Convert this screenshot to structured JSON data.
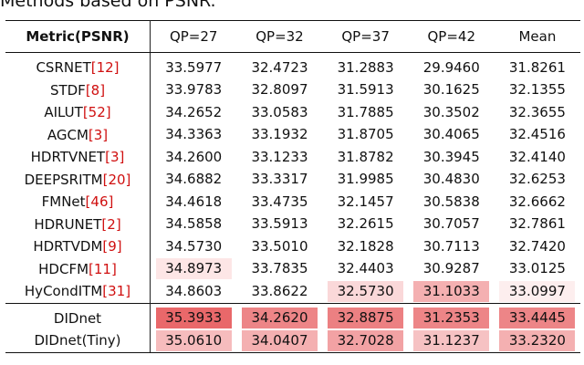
{
  "caption": "Methods based on PSNR.",
  "table": {
    "header": [
      "Metric(PSNR)",
      "QP=27",
      "QP=32",
      "QP=37",
      "QP=42",
      "Mean"
    ],
    "groups": [
      [
        {
          "method": "CSRNET",
          "cite": "[12]",
          "values": [
            "33.5977",
            "32.4723",
            "31.2883",
            "29.9460",
            "31.8261"
          ],
          "shade": [
            null,
            null,
            null,
            null,
            null
          ]
        },
        {
          "method": "STDF",
          "cite": "[8]",
          "values": [
            "33.9783",
            "32.8097",
            "31.5913",
            "30.1625",
            "32.1355"
          ],
          "shade": [
            null,
            null,
            null,
            null,
            null
          ]
        },
        {
          "method": "AILUT",
          "cite": "[52]",
          "values": [
            "34.2652",
            "33.0583",
            "31.7885",
            "30.3502",
            "32.3655"
          ],
          "shade": [
            null,
            null,
            null,
            null,
            null
          ]
        },
        {
          "method": "AGCM",
          "cite": "[3]",
          "values": [
            "34.3363",
            "33.1932",
            "31.8705",
            "30.4065",
            "32.4516"
          ],
          "shade": [
            null,
            null,
            null,
            null,
            null
          ]
        },
        {
          "method": "HDRTVNET",
          "cite": "[3]",
          "values": [
            "34.2600",
            "33.1233",
            "31.8782",
            "30.3945",
            "32.4140"
          ],
          "shade": [
            null,
            null,
            null,
            null,
            null
          ]
        },
        {
          "method": "DEEPSRITM",
          "cite": "[20]",
          "values": [
            "34.6882",
            "33.3317",
            "31.9985",
            "30.4830",
            "32.6253"
          ],
          "shade": [
            null,
            null,
            null,
            null,
            null
          ]
        },
        {
          "method": "FMNet",
          "cite": "[46]",
          "values": [
            "34.4618",
            "33.4735",
            "32.1457",
            "30.5838",
            "32.6662"
          ],
          "shade": [
            null,
            null,
            null,
            null,
            null
          ]
        },
        {
          "method": "HDRUNET",
          "cite": "[2]",
          "values": [
            "34.5858",
            "33.5913",
            "32.2615",
            "30.7057",
            "32.7861"
          ],
          "shade": [
            null,
            null,
            null,
            null,
            null
          ]
        },
        {
          "method": "HDRTVDM",
          "cite": "[9]",
          "values": [
            "34.5730",
            "33.5010",
            "32.1828",
            "30.7113",
            "32.7420"
          ],
          "shade": [
            null,
            null,
            null,
            null,
            null
          ]
        },
        {
          "method": "HDCFM",
          "cite": "[11]",
          "values": [
            "34.8973",
            "33.7835",
            "32.4403",
            "30.9287",
            "33.0125"
          ],
          "shade": [
            "#fde6e6",
            null,
            null,
            null,
            null
          ]
        },
        {
          "method": "HyCondITM",
          "cite": "[31]",
          "values": [
            "34.8603",
            "33.8622",
            "32.5730",
            "31.1033",
            "33.0997"
          ],
          "shade": [
            null,
            null,
            "#fad8d9",
            "#f4b0b1",
            "#fdeeee"
          ]
        }
      ],
      [
        {
          "method": "DIDnet",
          "values": [
            "35.3933",
            "34.2620",
            "32.8875",
            "31.2353",
            "33.4445"
          ],
          "shade": [
            "#e9686a",
            "#ed8587",
            "#ec8082",
            "#ed8587",
            "#ed8587"
          ]
        },
        {
          "method": "DIDnet(Tiny)",
          "values": [
            "35.0610",
            "34.0407",
            "32.7028",
            "31.1237",
            "33.2320"
          ],
          "shade": [
            "#f6bcbd",
            "#f4b0b1",
            "#f2a2a4",
            "#f6c2c3",
            "#f4b0b1"
          ]
        }
      ]
    ]
  }
}
